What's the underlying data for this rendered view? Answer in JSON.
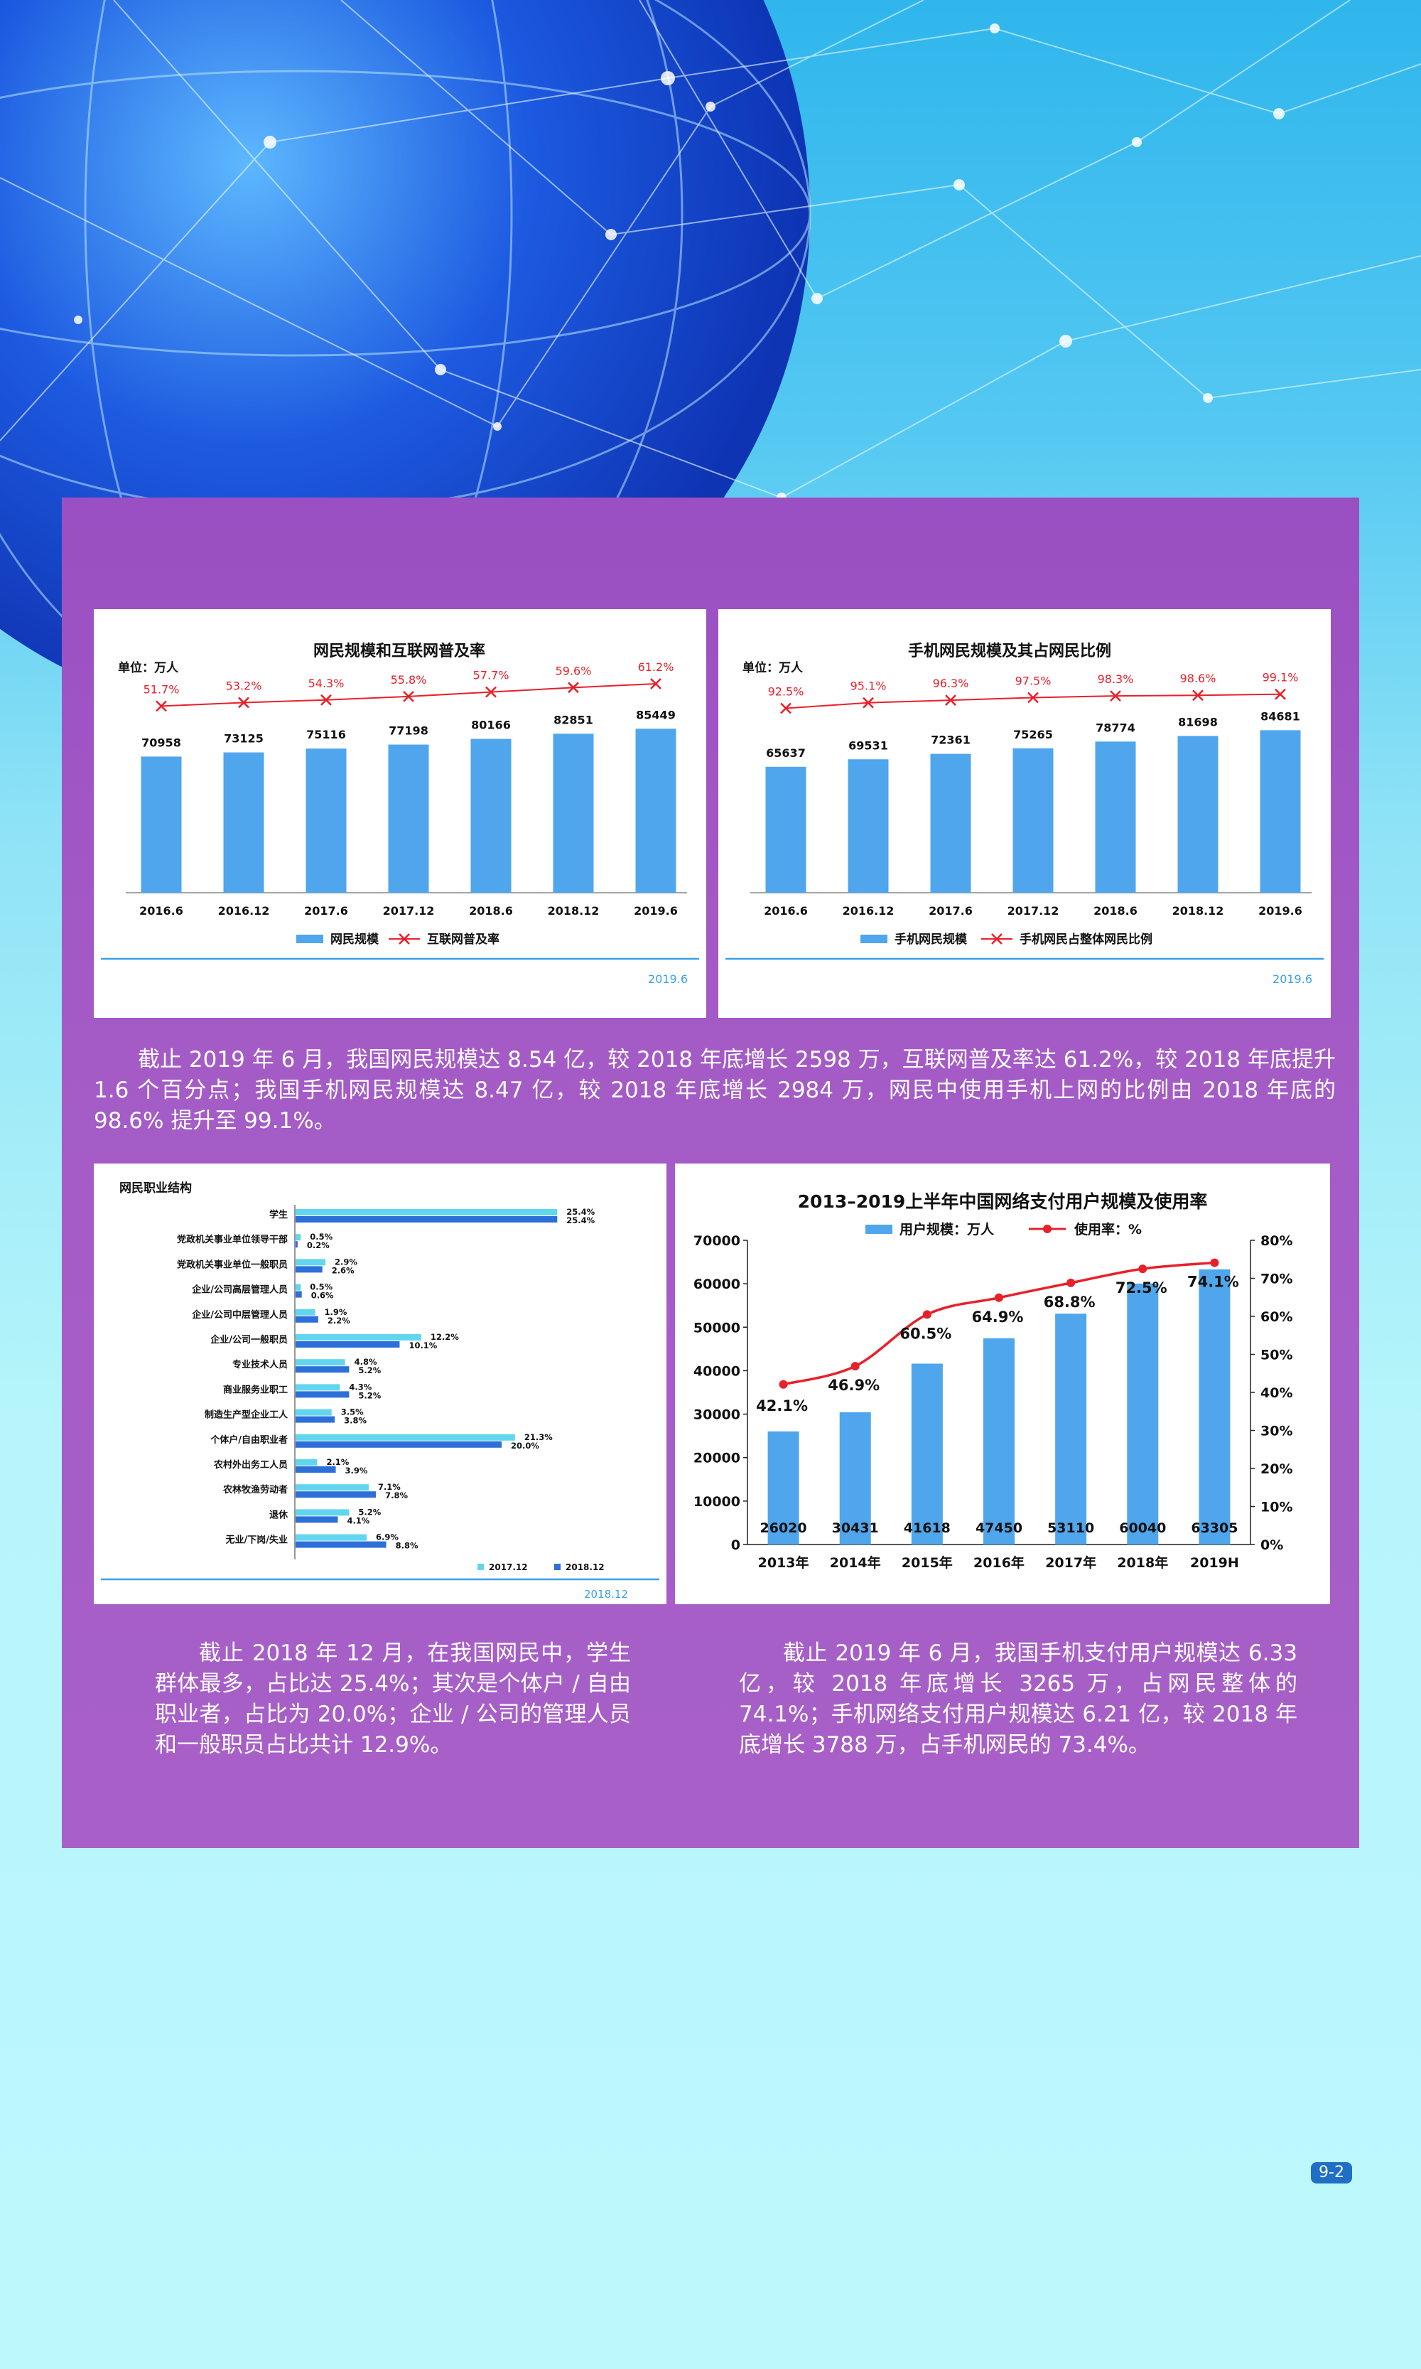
{
  "palette": {
    "panel": "#a45bc6",
    "bar": "#4fa6ec",
    "line": "#e8202a",
    "dark_bar": "#2d6fd9",
    "light_bar": "#62d6ee"
  },
  "chart_data": [
    {
      "type": "bar",
      "title": "网民规模和互联网普及率",
      "unit": "单位：万人",
      "categories": [
        "2016.6",
        "2016.12",
        "2017.6",
        "2017.12",
        "2018.6",
        "2018.12",
        "2019.6"
      ],
      "series": [
        {
          "name": "网民规模",
          "values": [
            70958,
            73125,
            75116,
            77198,
            80166,
            82851,
            85449
          ]
        },
        {
          "name": "互联网普及率",
          "values": [
            51.7,
            53.2,
            54.3,
            55.8,
            57.7,
            59.6,
            61.2
          ],
          "labels": [
            "51.7%",
            "53.2%",
            "54.3%",
            "55.8%",
            "57.7%",
            "59.6%",
            "61.2%"
          ]
        }
      ],
      "footer": "2019.6",
      "ylim": [
        0,
        100000
      ]
    },
    {
      "type": "bar",
      "title": "手机网民规模及其占网民比例",
      "unit": "单位：万人",
      "categories": [
        "2016.6",
        "2016.12",
        "2017.6",
        "2017.12",
        "2018.6",
        "2018.12",
        "2019.6"
      ],
      "series": [
        {
          "name": "手机网民规模",
          "values": [
            65637,
            69531,
            72361,
            75265,
            78774,
            81698,
            84681
          ]
        },
        {
          "name": "手机网民占整体网民比例",
          "values": [
            92.5,
            95.1,
            96.3,
            97.5,
            98.3,
            98.6,
            99.1
          ],
          "labels": [
            "92.5%",
            "95.1%",
            "96.3%",
            "97.5%",
            "98.3%",
            "98.6%",
            "99.1%"
          ]
        }
      ],
      "footer": "2019.6",
      "ylim": [
        0,
        100000
      ]
    },
    {
      "type": "bar",
      "orientation": "horizontal",
      "title": "网民职业结构",
      "categories": [
        "学生",
        "党政机关事业单位领导干部",
        "党政机关事业单位一般职员",
        "企业/公司高层管理人员",
        "企业/公司中层管理人员",
        "企业/公司一般职员",
        "专业技术人员",
        "商业服务业职工",
        "制造生产型企业工人",
        "个体户/自由职业者",
        "农村外出务工人员",
        "农林牧渔劳动者",
        "退休",
        "无业/下岗/失业"
      ],
      "series": [
        {
          "name": "2017.12",
          "values": [
            25.4,
            0.5,
            2.9,
            0.5,
            1.9,
            12.2,
            4.8,
            4.3,
            3.5,
            21.3,
            2.1,
            7.1,
            5.2,
            6.9
          ],
          "labels": [
            "25.4%",
            "0.5%",
            "2.9%",
            "0.5%",
            "1.9%",
            "12.2%",
            "4.8%",
            "4.3%",
            "3.5%",
            "21.3%",
            "2.1%",
            "7.1%",
            "5.2%",
            "6.9%"
          ]
        },
        {
          "name": "2018.12",
          "values": [
            25.4,
            0.2,
            2.6,
            0.6,
            2.2,
            10.1,
            5.2,
            5.2,
            3.8,
            20.0,
            3.9,
            7.8,
            4.1,
            8.8
          ],
          "labels": [
            "25.4%",
            "0.2%",
            "2.6%",
            "0.6%",
            "2.2%",
            "10.1%",
            "5.2%",
            "5.2%",
            "3.8%",
            "20.0%",
            "3.9%",
            "7.8%",
            "4.1%",
            "8.8%"
          ]
        }
      ],
      "footer": "2018.12"
    },
    {
      "type": "bar",
      "title": "2013–2019上半年中国网络支付用户规模及使用率",
      "categories": [
        "2013年",
        "2014年",
        "2015年",
        "2016年",
        "2017年",
        "2018年",
        "2019H"
      ],
      "series": [
        {
          "name": "用户规模：万人",
          "values": [
            26020,
            30431,
            41618,
            47450,
            53110,
            60040,
            63305
          ]
        },
        {
          "name": "使用率：%",
          "values": [
            42.1,
            46.9,
            60.5,
            64.9,
            68.8,
            72.5,
            74.1
          ],
          "labels": [
            "42.1%",
            "46.9%",
            "60.5%",
            "64.9%",
            "68.8%",
            "72.5%",
            "74.1%"
          ]
        }
      ],
      "ylim": [
        0,
        70000
      ],
      "y_ticks": [
        "0",
        "10000",
        "20000",
        "30000",
        "40000",
        "50000",
        "60000",
        "70000"
      ],
      "y2lim": [
        0,
        80
      ],
      "y2_ticks": [
        "0%",
        "10%",
        "20%",
        "30%",
        "40%",
        "50%",
        "60%",
        "70%",
        "80%"
      ]
    }
  ],
  "text": {
    "para1": [
      "截止 2019 年 6 月，我国网民规模达 8.54 亿，较 2018 年底增长 2598 万，互联网普及率达 61.2%，较 2018 年底提升 1.6 个百分点；我国手机网民规模达 8.47 亿，较 2018 年底增长 2984 万，网民中使用手机上网的比例由 2018 年底的 98.6% 提升至 99.1%。"
    ],
    "para2": "截止 2018 年 12 月，在我国网民中，学生群体最多，占比达 25.4%；其次是个体户 / 自由职业者，占比为 20.0%；企业 / 公司的管理人员和一般职员占比共计 12.9%。",
    "para3": "截止 2019 年 6 月，我国手机支付用户规模达 6.33 亿，较 2018 年底增长 3265 万，占网民整体的 74.1%；手机网络支付用户规模达 6.21 亿，较 2018 年底增长 3788 万，占手机网民的 73.4%。"
  },
  "page_number": "9-2"
}
